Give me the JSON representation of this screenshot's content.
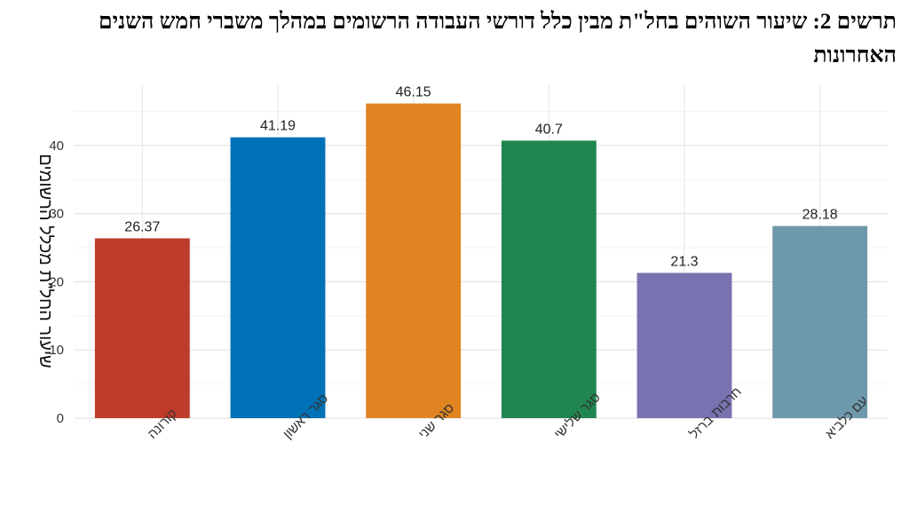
{
  "chart_data": {
    "type": "bar",
    "title": "תרשים 2: שיעור השוהים בחל\"ת מבין כלל דורשי העבודה הרשומים במהלך משברי חמש השנים האחרונות",
    "xlabel": "",
    "ylabel": "שיעור החל\"ת מכלל הרשומים",
    "categories": [
      "קורונה",
      "סגר ראשון",
      "סגר שני",
      "סגר שלישי",
      "חרבות ברזל",
      "עם כלביא"
    ],
    "values": [
      26.37,
      41.19,
      46.15,
      40.7,
      21.3,
      28.18
    ],
    "data_labels": [
      "26.37",
      "41.19",
      "46.15",
      "40.7",
      "21.3",
      "28.18"
    ],
    "colors": [
      "#bd3b28",
      "#0071b7",
      "#e08522",
      "#1f8650",
      "#7872b1",
      "#6e98ac"
    ],
    "ylim": [
      0,
      50
    ],
    "yticks": [
      0,
      10,
      20,
      30,
      40
    ],
    "grid": true,
    "legend": "none"
  }
}
